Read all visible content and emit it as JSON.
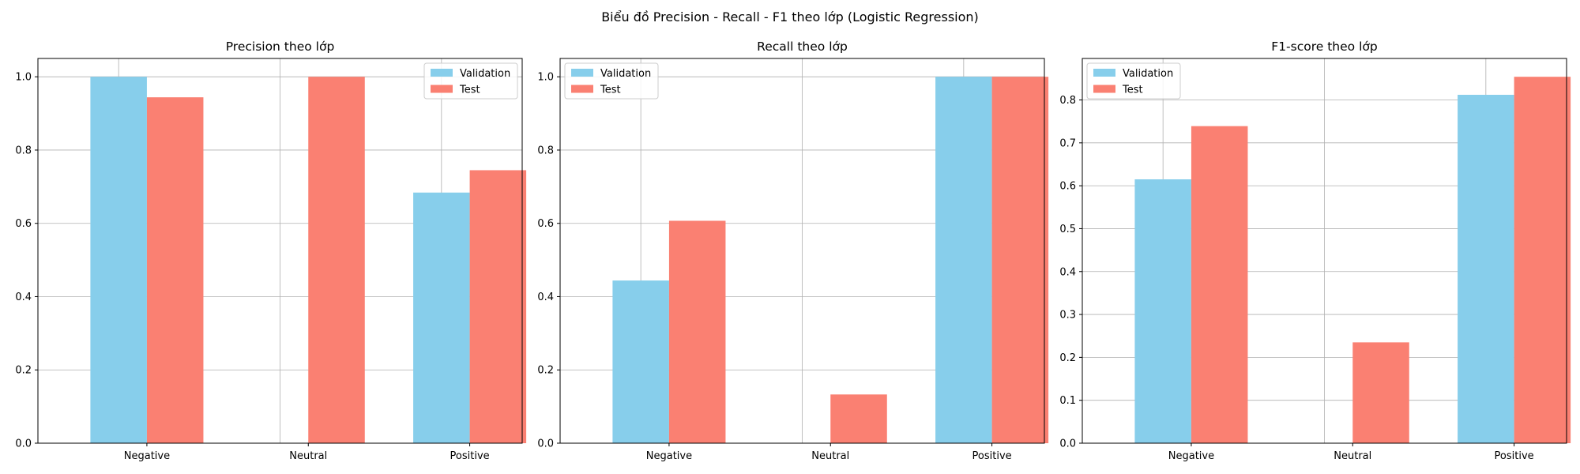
{
  "suptitle": "Biểu đồ Precision - Recall - F1 theo lớp (Logistic Regression)",
  "colors": {
    "validation": "#87CEEB",
    "test": "#FA8072",
    "grid": "#b0b0b0",
    "axis": "#000000"
  },
  "chart_data": [
    {
      "type": "bar",
      "title": "Precision theo lớp",
      "categories": [
        "Negative",
        "Neutral",
        "Positive"
      ],
      "series": [
        {
          "name": "Validation",
          "values": [
            1.0,
            0.0,
            0.684
          ]
        },
        {
          "name": "Test",
          "values": [
            0.944,
            1.0,
            0.745
          ]
        }
      ],
      "ylim": [
        0,
        1.05
      ],
      "yticks": [
        "0.0",
        "0.2",
        "0.4",
        "0.6",
        "0.8",
        "1.0"
      ],
      "grid": true,
      "legend": "upper right"
    },
    {
      "type": "bar",
      "title": "Recall theo lớp",
      "categories": [
        "Negative",
        "Neutral",
        "Positive"
      ],
      "series": [
        {
          "name": "Validation",
          "values": [
            0.444,
            0.0,
            1.0
          ]
        },
        {
          "name": "Test",
          "values": [
            0.607,
            0.133,
            1.0
          ]
        }
      ],
      "ylim": [
        0,
        1.05
      ],
      "yticks": [
        "0.0",
        "0.2",
        "0.4",
        "0.6",
        "0.8",
        "1.0"
      ],
      "grid": true,
      "legend": "upper left"
    },
    {
      "type": "bar",
      "title": "F1-score theo lớp",
      "categories": [
        "Negative",
        "Neutral",
        "Positive"
      ],
      "series": [
        {
          "name": "Validation",
          "values": [
            0.615,
            0.0,
            0.812
          ]
        },
        {
          "name": "Test",
          "values": [
            0.739,
            0.235,
            0.854
          ]
        }
      ],
      "ylim": [
        0,
        0.8967
      ],
      "yticks": [
        "0.0",
        "0.1",
        "0.2",
        "0.3",
        "0.4",
        "0.5",
        "0.6",
        "0.7",
        "0.8"
      ],
      "grid": true,
      "legend": "upper left"
    }
  ]
}
